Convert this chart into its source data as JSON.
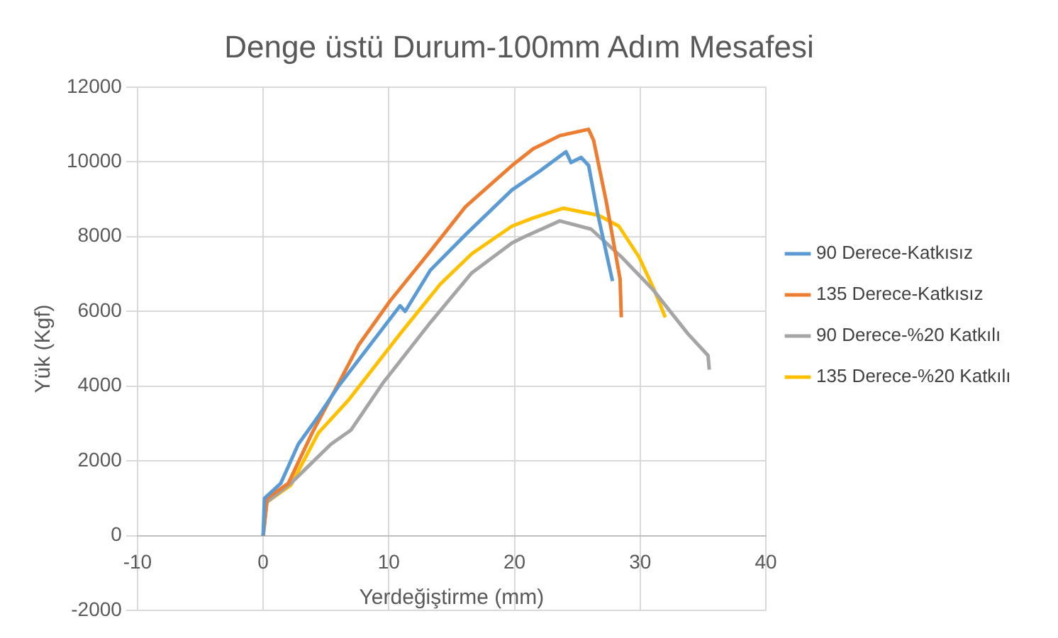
{
  "chart_data": {
    "type": "line",
    "title": "Denge üstü Durum-100mm Adım Mesafesi",
    "xlabel": "Yerdeğiştirme (mm)",
    "ylabel": "Yük (Kgf)",
    "xlim": [
      -10,
      40
    ],
    "xticks": [
      -10,
      0,
      10,
      20,
      30,
      40
    ],
    "ylim": [
      -2000,
      12000
    ],
    "yticks": [
      -2000,
      0,
      2000,
      4000,
      6000,
      8000,
      10000,
      12000
    ],
    "grid": true,
    "legend": "right",
    "marker": "none",
    "line_style": "solid",
    "series": [
      {
        "name": "90 Derece-Katkısız",
        "color": "#5b9bd5",
        "x": [
          0,
          0.1,
          1.4,
          2.8,
          4.4,
          6.0,
          8.5,
          10.9,
          11.3,
          13.3,
          16.1,
          19.8,
          22,
          24.1,
          24.5,
          25.3,
          25.9,
          26.6,
          27.8
        ],
        "values": [
          0,
          1000,
          1400,
          2450,
          3200,
          4000,
          5100,
          6150,
          6000,
          7100,
          8050,
          9250,
          9750,
          10270,
          9980,
          10120,
          9900,
          8640,
          6810
        ]
      },
      {
        "name": "135 Derece-Katkısız",
        "color": "#ed7d31",
        "x": [
          0,
          0.3,
          2.0,
          3.9,
          6.0,
          7.6,
          10.1,
          13.3,
          16.1,
          19.8,
          21.5,
          23.6,
          25.9,
          26.3,
          27.3,
          28.4,
          28.5
        ],
        "values": [
          0,
          1000,
          1400,
          2750,
          4070,
          5100,
          6280,
          7610,
          8800,
          9900,
          10350,
          10700,
          10870,
          10570,
          8940,
          6870,
          5840
        ]
      },
      {
        "name": "90 Derece-%20 Katkılı",
        "color": "#a5a5a5",
        "x": [
          0,
          0.3,
          2.2,
          3.6,
          5.4,
          7.0,
          9.5,
          13.3,
          16.6,
          19.8,
          20.7,
          23.6,
          26.1,
          28.5,
          31.0,
          33.8,
          35.4,
          35.5
        ],
        "values": [
          0,
          900,
          1400,
          1860,
          2450,
          2830,
          4070,
          5700,
          7030,
          7830,
          7980,
          8420,
          8200,
          7460,
          6590,
          5400,
          4820,
          4440
        ]
      },
      {
        "name": "135 Derece-%20 Katkılı",
        "color": "#ffc000",
        "x": [
          0,
          0.3,
          2.2,
          4.4,
          6.8,
          10.9,
          14.1,
          16.6,
          19.8,
          21.5,
          23.9,
          26.7,
          28.3,
          29.9,
          31.1,
          32.0
        ],
        "values": [
          0,
          900,
          1350,
          2750,
          3630,
          5400,
          6730,
          7540,
          8280,
          8500,
          8760,
          8570,
          8280,
          7460,
          6590,
          5840
        ]
      }
    ]
  }
}
